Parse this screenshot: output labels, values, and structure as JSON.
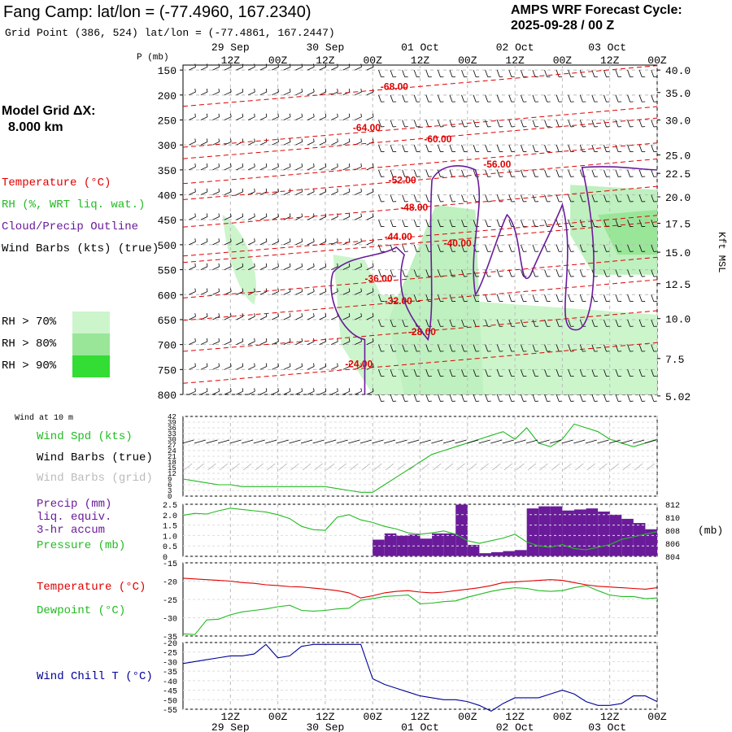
{
  "header": {
    "title": "Fang Camp:  lat/lon = (-77.4960, 167.2340)",
    "subtitle": "Grid Point (386, 524) lat/lon = (-77.4861, 167.2447)",
    "cycle_line1": "AMPS WRF Forecast Cycle:",
    "cycle_line2": "2025-09-28 / 00  Z"
  },
  "left_panel": {
    "grid_dx_line1": "Model Grid ΔX:",
    "grid_dx_line2": "8.000 km",
    "legend": [
      {
        "label": "Temperature (°C)",
        "color": "#e00000"
      },
      {
        "label": "RH (%, WRT liq. wat.)",
        "color": "#22bb22"
      },
      {
        "label": "Cloud/Precip Outline",
        "color": "#6a1b9a"
      },
      {
        "label": "Wind Barbs (kts) (true)",
        "color": "#000000"
      }
    ],
    "rh_bins": [
      {
        "label": "RH > 70%",
        "color": "#ccf5cc"
      },
      {
        "label": "RH > 80%",
        "color": "#99e699"
      },
      {
        "label": "RH > 90%",
        "color": "#33dd33"
      }
    ]
  },
  "colors": {
    "temp": "#e00000",
    "rh": "#22bb22",
    "cloud": "#6a1b9a",
    "wind": "#000000",
    "precip": "#6a1b9a",
    "chill": "#000099",
    "grid": "#999999"
  },
  "chart_data": [
    {
      "type": "line",
      "name": "cross-section",
      "xlabel": "",
      "ylabel": "P (mb)",
      "y2label": "Kft MSL",
      "time_ticks_top": [
        "12Z",
        "00Z",
        "12Z",
        "00Z",
        "12Z",
        "00Z",
        "12Z",
        "00Z",
        "12Z",
        "00Z"
      ],
      "date_labels_top": [
        "29 Sep",
        "30 Sep",
        "01 Oct",
        "02 Oct",
        "03 Oct"
      ],
      "pressure_ticks": [
        150,
        200,
        250,
        300,
        350,
        400,
        450,
        500,
        550,
        600,
        650,
        700,
        750,
        800
      ],
      "kft_ticks": [
        "40.0",
        "35.0",
        "30.0",
        "25.0",
        "22.5",
        "20.0",
        "17.5",
        "15.0",
        "12.5",
        "10.0",
        "7.5",
        "5.02"
      ],
      "kft_pressures": [
        150,
        195,
        250,
        320,
        357,
        404,
        457,
        515,
        578,
        648,
        728,
        803
      ],
      "xlim": [
        0,
        120
      ],
      "ylim": [
        800,
        150
      ],
      "isotherm_labels": [
        {
          "text": "-68.00",
          "t": 50,
          "p": 190
        },
        {
          "text": "-64.00",
          "t": 43,
          "p": 272
        },
        {
          "text": "-60.00",
          "t": 61,
          "p": 295
        },
        {
          "text": "-56.00",
          "t": 76,
          "p": 345
        },
        {
          "text": "-52.00",
          "t": 52,
          "p": 377
        },
        {
          "text": "-48.00",
          "t": 55,
          "p": 432
        },
        {
          "text": "-44.00",
          "t": 51,
          "p": 490
        },
        {
          "text": "-40.00",
          "t": 66,
          "p": 503
        },
        {
          "text": "-36.00",
          "t": 46,
          "p": 574
        },
        {
          "text": "-32.00",
          "t": 51,
          "p": 619
        },
        {
          "text": "-28.00",
          "t": 57,
          "p": 681
        },
        {
          "text": "-24.00",
          "t": 41,
          "p": 745
        }
      ]
    },
    {
      "type": "line",
      "name": "wind-10m",
      "title": "Wind at 10 m",
      "legend": [
        {
          "label": "Wind Spd (kts)",
          "color": "#22bb22"
        },
        {
          "label": "Wind Barbs (true)",
          "color": "#000000"
        },
        {
          "label": "Wind Barbs (grid)",
          "color": "#bbbbbb"
        }
      ],
      "yticks": [
        0,
        3,
        6,
        9,
        12,
        15,
        18,
        21,
        24,
        27,
        30,
        33,
        36,
        39,
        42
      ],
      "ylim": [
        0,
        42
      ],
      "x": [
        0,
        3,
        6,
        9,
        12,
        15,
        18,
        21,
        24,
        27,
        30,
        33,
        36,
        39,
        42,
        45,
        48,
        51,
        54,
        57,
        60,
        63,
        66,
        69,
        72,
        75,
        78,
        81,
        84,
        87,
        90,
        93,
        96,
        99,
        102,
        105,
        108,
        111,
        114,
        117,
        120
      ],
      "values": [
        9,
        8,
        7,
        6,
        6,
        5,
        5,
        5,
        5,
        5,
        5,
        5,
        5,
        4,
        3,
        2,
        2,
        6,
        10,
        14,
        18,
        22,
        24,
        26,
        28,
        30,
        32,
        34,
        30,
        36,
        28,
        26,
        30,
        38,
        36,
        34,
        30,
        28,
        26,
        28,
        30
      ]
    },
    {
      "type": "bar",
      "name": "precip-pressure",
      "legend": [
        {
          "label": "Precip (mm)",
          "color": "#6a1b9a"
        },
        {
          "label": "liq. equiv.",
          "color": "#6a1b9a"
        },
        {
          "label": "3-hr accum",
          "color": "#6a1b9a"
        },
        {
          "label": "Pressure (mb)",
          "color": "#22bb22"
        }
      ],
      "yticks": [
        "0",
        "0.5",
        "1.0",
        "1.5",
        "2.0",
        "2.5"
      ],
      "y2ticks": [
        "804",
        "806",
        "808",
        "810",
        "812"
      ],
      "y2label": "(mb)",
      "ylim": [
        0,
        2.5
      ],
      "y2lim": [
        804,
        812
      ],
      "bar_x": [
        48,
        51,
        54,
        57,
        60,
        63,
        66,
        69,
        72,
        75,
        78,
        81,
        84,
        87,
        90,
        93,
        96,
        99,
        102,
        105,
        108,
        111,
        114,
        117
      ],
      "bar_values": [
        0.8,
        1.1,
        1.0,
        1.05,
        0.85,
        1.1,
        1.1,
        2.5,
        0.55,
        0.15,
        0.2,
        0.25,
        0.3,
        2.3,
        2.4,
        2.4,
        2.2,
        2.25,
        2.3,
        2.15,
        2.0,
        1.8,
        1.6,
        1.3
      ],
      "x": [
        0,
        3,
        6,
        9,
        12,
        15,
        18,
        21,
        24,
        27,
        30,
        33,
        36,
        39,
        42,
        45,
        48,
        51,
        54,
        57,
        60,
        63,
        66,
        69,
        72,
        75,
        78,
        81,
        84,
        87,
        90,
        93,
        96,
        99,
        102,
        105,
        108,
        111,
        114,
        117,
        120
      ],
      "pressure": [
        810.3,
        810.6,
        810.5,
        811.0,
        811.4,
        811.2,
        811.0,
        810.8,
        810.4,
        809.8,
        808.6,
        808.1,
        808.0,
        810.0,
        810.4,
        809.6,
        809.2,
        808.6,
        808.2,
        807.6,
        807.4,
        807.6,
        807.9,
        807.4,
        806.4,
        806.0,
        806.4,
        806.8,
        807.4,
        806.2,
        805.6,
        805.4,
        805.8,
        805.2,
        805.0,
        805.4,
        805.8,
        806.6,
        807.0,
        807.4,
        807.8
      ]
    },
    {
      "type": "line",
      "name": "temperature-dewpoint",
      "legend": [
        {
          "label": "Temperature (°C)",
          "color": "#e00000"
        },
        {
          "label": "Dewpoint (°C)",
          "color": "#22bb22"
        }
      ],
      "yticks": [
        -15,
        -20,
        -25,
        -30,
        -35
      ],
      "ylim": [
        -35,
        -15
      ],
      "x": [
        0,
        3,
        6,
        9,
        12,
        15,
        18,
        21,
        24,
        27,
        30,
        33,
        36,
        39,
        42,
        45,
        48,
        51,
        54,
        57,
        60,
        63,
        66,
        69,
        72,
        75,
        78,
        81,
        84,
        87,
        90,
        93,
        96,
        99,
        102,
        105,
        108,
        111,
        114,
        117,
        120
      ],
      "temperature": [
        -19.2,
        -19.4,
        -19.6,
        -19.8,
        -20.0,
        -20.4,
        -20.6,
        -21.0,
        -21.2,
        -21.5,
        -21.6,
        -21.9,
        -22.2,
        -22.6,
        -23.2,
        -24.6,
        -24.0,
        -23.2,
        -22.8,
        -22.6,
        -23.0,
        -23.2,
        -23.0,
        -22.6,
        -22.2,
        -21.8,
        -21.2,
        -20.4,
        -20.2,
        -20.0,
        -19.8,
        -19.6,
        -19.8,
        -20.4,
        -21.0,
        -21.4,
        -21.6,
        -21.8,
        -22.0,
        -22.2,
        -21.8
      ],
      "dewpoint": [
        -34.4,
        -34.6,
        -30.6,
        -30.4,
        -29.2,
        -28.4,
        -28.0,
        -27.6,
        -27.0,
        -26.6,
        -28.0,
        -28.2,
        -28.0,
        -27.6,
        -27.4,
        -25.2,
        -24.8,
        -24.2,
        -24.0,
        -23.8,
        -26.2,
        -26.0,
        -25.6,
        -25.4,
        -24.4,
        -23.6,
        -22.8,
        -22.2,
        -21.8,
        -22.0,
        -22.6,
        -22.8,
        -22.6,
        -21.8,
        -21.2,
        -22.6,
        -23.8,
        -24.2,
        -24.2,
        -24.8,
        -24.6
      ]
    },
    {
      "type": "line",
      "name": "wind-chill",
      "legend": [
        {
          "label": "Wind Chill T (°C)",
          "color": "#000099"
        }
      ],
      "yticks": [
        -20,
        -25,
        -30,
        -35,
        -40,
        -45,
        -50,
        -55
      ],
      "ylim": [
        -55,
        -20
      ],
      "x": [
        0,
        3,
        6,
        9,
        12,
        15,
        18,
        21,
        24,
        27,
        30,
        33,
        36,
        39,
        42,
        45,
        48,
        51,
        54,
        57,
        60,
        63,
        66,
        69,
        72,
        75,
        78,
        81,
        84,
        87,
        90,
        93,
        96,
        99,
        102,
        105,
        108,
        111,
        114,
        117,
        120
      ],
      "values": [
        -31,
        -30,
        -29,
        -28,
        -27,
        -27,
        -26,
        -21,
        -28,
        -27,
        -22,
        -21,
        -21,
        -21,
        -21,
        -21,
        -39,
        -42,
        -44,
        -46,
        -48,
        -49,
        -50,
        -50,
        -51,
        -53,
        -56,
        -52,
        -49,
        -49,
        -49,
        -47,
        -45,
        -47,
        -51,
        -53,
        -53,
        -52,
        -48,
        -48,
        -51
      ],
      "xticks_bottom": [
        "12Z",
        "00Z",
        "12Z",
        "00Z",
        "12Z",
        "00Z",
        "12Z",
        "00Z",
        "12Z",
        "00Z"
      ],
      "date_labels_bottom": [
        "29 Sep",
        "30 Sep",
        "01 Oct",
        "02 Oct",
        "03 Oct"
      ]
    }
  ]
}
